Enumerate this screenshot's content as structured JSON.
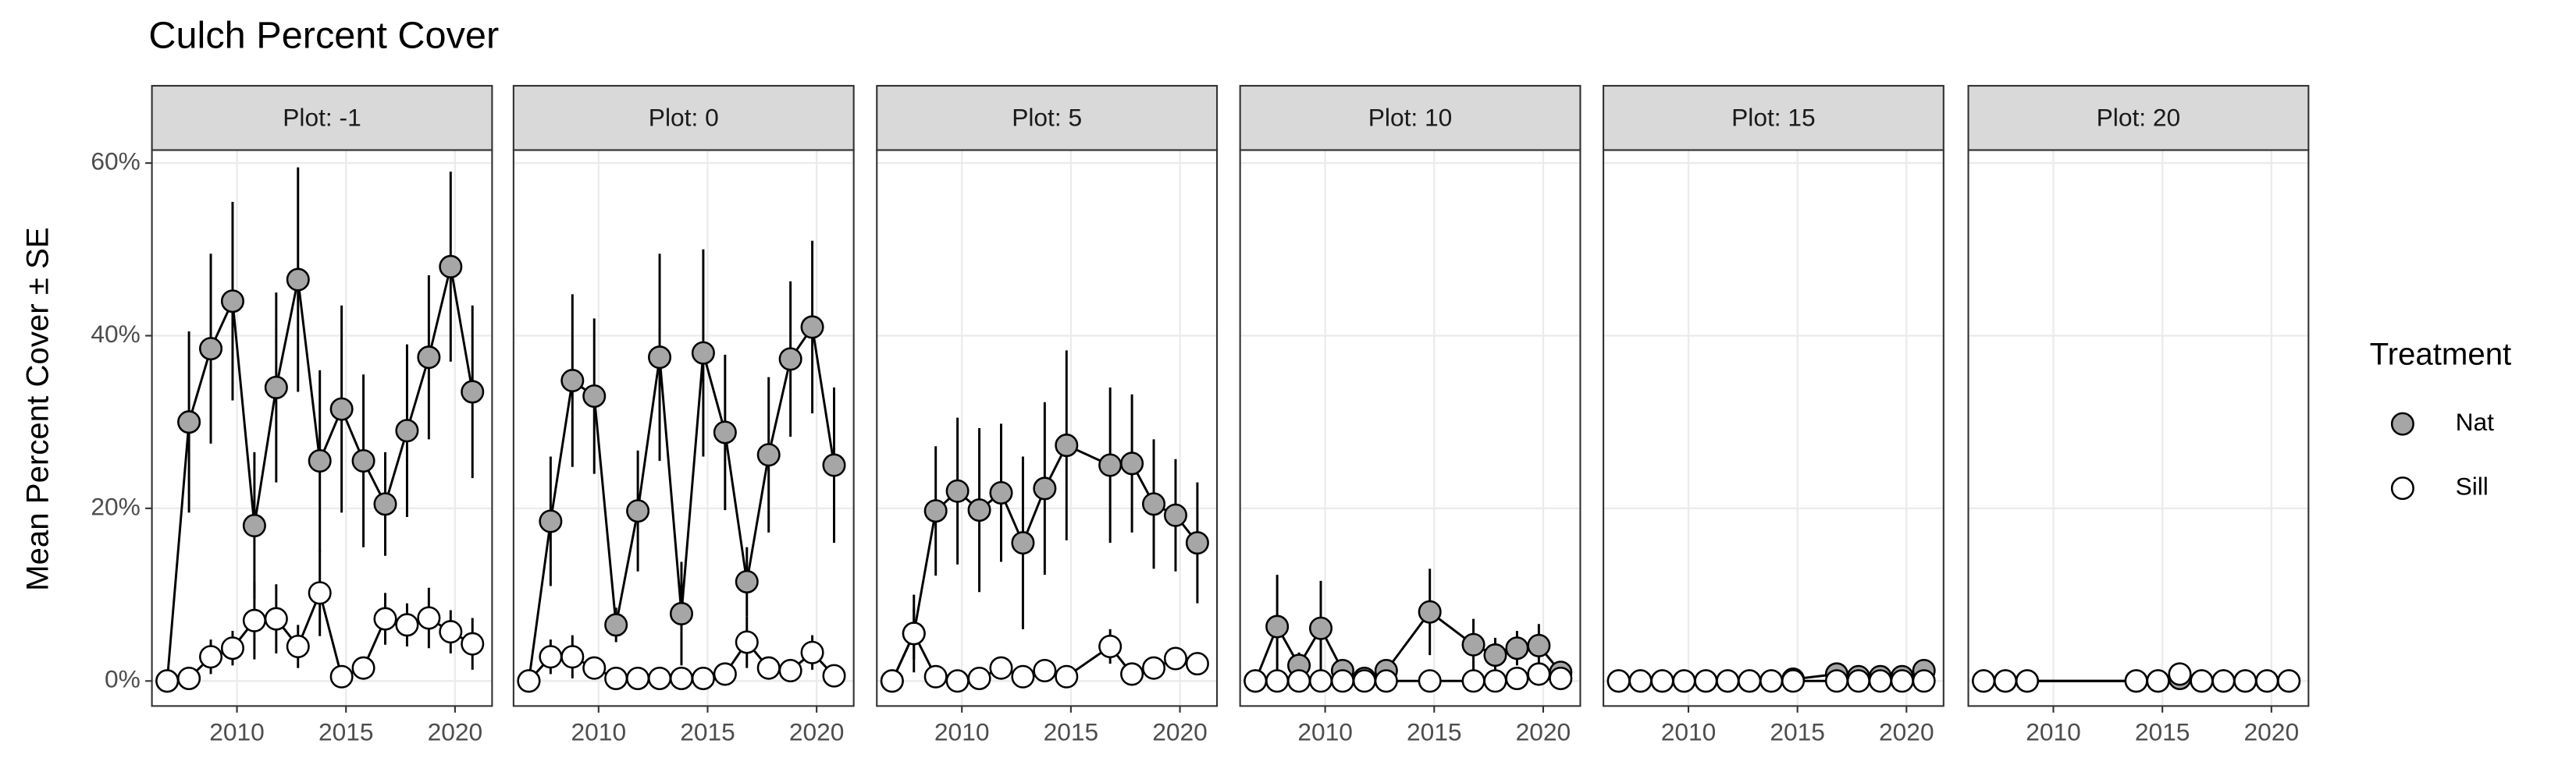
{
  "chart_data": [
    {
      "type": "line",
      "title": "Culch Percent Cover",
      "y_label": "Mean Percent Cover ± SE",
      "legend_title": "Treatment",
      "facet": "Plot: -1",
      "x": [
        2006.8,
        2007.8,
        2008.8,
        2009.8,
        2010.8,
        2011.8,
        2012.8,
        2013.8,
        2014.8,
        2015.8,
        2016.8,
        2017.8,
        2018.8,
        2019.8,
        2020.8
      ],
      "series": [
        {
          "name": "Nat",
          "color": "#a6a6a6",
          "values": [
            0,
            30,
            38.5,
            44,
            18,
            34,
            46.5,
            25.5,
            31.5,
            25.5,
            20.5,
            29,
            37.5,
            48,
            33.5
          ],
          "errors": [
            0,
            10.5,
            11,
            11.5,
            8.5,
            11,
            13,
            10.5,
            12,
            10,
            6,
            10,
            9.5,
            11,
            10
          ]
        },
        {
          "name": "Sill",
          "color": "#ffffff",
          "values": [
            0,
            0.3,
            2.8,
            3.8,
            7,
            7.2,
            4,
            10.2,
            0.5,
            1.5,
            7.2,
            6.5,
            7.3,
            5.7,
            4.3
          ],
          "errors": [
            0,
            0.3,
            2,
            2,
            4.5,
            4,
            2.5,
            5,
            0.5,
            1,
            3,
            2.5,
            3.5,
            2.5,
            3
          ]
        }
      ],
      "xlim": [
        2006.1,
        2021.7
      ],
      "xticks": [
        2010,
        2015,
        2020
      ],
      "ylim": [
        -2.9,
        61.5
      ],
      "yticks": [
        {
          "value": 0,
          "label": "0%"
        },
        {
          "value": 20,
          "label": "20%"
        },
        {
          "value": 40,
          "label": "40%"
        },
        {
          "value": 60,
          "label": "60%"
        }
      ],
      "grid": true
    },
    {
      "type": "line",
      "facet": "Plot: 0",
      "x": [
        2006.8,
        2007.8,
        2008.8,
        2009.8,
        2010.8,
        2011.8,
        2012.8,
        2013.8,
        2014.8,
        2015.8,
        2016.8,
        2017.8,
        2018.8,
        2019.8,
        2020.8
      ],
      "series": [
        {
          "name": "Nat",
          "color": "#a6a6a6",
          "values": [
            0,
            18.5,
            34.8,
            33,
            6.5,
            19.7,
            37.5,
            7.8,
            38,
            28.8,
            11.5,
            26.2,
            37.3,
            41,
            25
          ],
          "errors": [
            0,
            7.5,
            10,
            9,
            2,
            7,
            12,
            6,
            12,
            9,
            4,
            9,
            9,
            10,
            9
          ]
        },
        {
          "name": "Sill",
          "color": "#ffffff",
          "values": [
            0,
            2.8,
            2.8,
            1.5,
            0.3,
            0.3,
            0.3,
            0.3,
            0.3,
            0.8,
            4.5,
            1.5,
            1.2,
            3.3,
            0.6
          ],
          "errors": [
            0,
            2,
            2.5,
            1,
            0.3,
            0.3,
            0.3,
            0.3,
            0.3,
            0.8,
            3,
            1,
            1,
            2,
            0.6
          ]
        }
      ],
      "xlim": [
        2006.1,
        2021.7
      ],
      "xticks": [
        2010,
        2015,
        2020
      ],
      "ylim": [
        -2.9,
        61.5
      ],
      "yticks": [
        0,
        20,
        40,
        60
      ],
      "grid": true
    },
    {
      "type": "line",
      "facet": "Plot: 5",
      "x": [
        2006.8,
        2007.8,
        2008.8,
        2009.8,
        2010.8,
        2011.8,
        2012.8,
        2013.8,
        2014.8,
        2016.8,
        2017.8,
        2018.8,
        2019.8,
        2020.8
      ],
      "series": [
        {
          "name": "Nat",
          "color": "#a6a6a6",
          "values": [
            0,
            5.5,
            19.7,
            22,
            19.8,
            21.8,
            16,
            22.3,
            27.3,
            25,
            25.2,
            20.5,
            19.2,
            16
          ],
          "errors": [
            0,
            4.5,
            7.5,
            8.5,
            9.5,
            8,
            10,
            10,
            11,
            9,
            8,
            7.5,
            6.5,
            7
          ]
        },
        {
          "name": "Sill",
          "color": "#ffffff",
          "values": [
            0,
            5.5,
            0.5,
            0,
            0.3,
            1.5,
            0.5,
            1.2,
            0.5,
            4,
            0.8,
            1.5,
            2.6,
            2
          ],
          "errors": [
            0,
            3,
            0.5,
            0,
            0.3,
            1,
            0.5,
            1,
            0.5,
            2,
            0.8,
            1,
            1,
            1
          ]
        }
      ],
      "xlim": [
        2006.1,
        2021.7
      ],
      "xticks": [
        2010,
        2015,
        2020
      ],
      "ylim": [
        -2.9,
        61.5
      ],
      "yticks": [
        0,
        20,
        40,
        60
      ],
      "grid": true
    },
    {
      "type": "line",
      "facet": "Plot: 10",
      "x": [
        2006.8,
        2007.8,
        2008.8,
        2009.8,
        2010.8,
        2011.8,
        2012.8,
        2014.8,
        2016.8,
        2017.8,
        2018.8,
        2019.8,
        2020.8
      ],
      "series": [
        {
          "name": "Nat",
          "color": "#a6a6a6",
          "values": [
            0,
            6.3,
            1.8,
            6.1,
            1.2,
            0.3,
            1.2,
            8,
            4.2,
            3,
            3.8,
            4.1,
            1
          ],
          "errors": [
            0,
            6,
            1.5,
            5.5,
            1,
            0.3,
            1,
            5,
            3,
            2,
            2,
            2.5,
            1
          ]
        },
        {
          "name": "Sill",
          "color": "#ffffff",
          "values": [
            0,
            0,
            0,
            0,
            0,
            0,
            0,
            0,
            0,
            0,
            0.3,
            0.8,
            0.3
          ],
          "errors": [
            0,
            0,
            0,
            0,
            0,
            0,
            0,
            0,
            0,
            0,
            0.3,
            0.5,
            0.3
          ]
        }
      ],
      "xlim": [
        2006.1,
        2021.7
      ],
      "xticks": [
        2010,
        2015,
        2020
      ],
      "ylim": [
        -2.9,
        61.5
      ],
      "yticks": [
        0,
        20,
        40,
        60
      ],
      "grid": true
    },
    {
      "type": "line",
      "facet": "Plot: 15",
      "x": [
        2006.8,
        2007.8,
        2008.8,
        2009.8,
        2010.8,
        2011.8,
        2012.8,
        2013.8,
        2014.8,
        2016.8,
        2017.8,
        2018.8,
        2019.8,
        2020.8
      ],
      "series": [
        {
          "name": "Nat",
          "color": "#a6a6a6",
          "values": [
            0,
            0,
            0,
            0,
            0,
            0,
            0,
            0,
            0.2,
            0.8,
            0.5,
            0.5,
            0.5,
            1.2
          ],
          "errors": [
            0,
            0,
            0,
            0,
            0,
            0,
            0,
            0,
            0.2,
            0.5,
            0.4,
            0.4,
            0.4,
            0.8
          ]
        },
        {
          "name": "Sill",
          "color": "#ffffff",
          "values": [
            0,
            0,
            0,
            0,
            0,
            0,
            0,
            0,
            0,
            0,
            0,
            0,
            0,
            0
          ],
          "errors": [
            0,
            0,
            0,
            0,
            0,
            0,
            0,
            0,
            0,
            0,
            0,
            0,
            0,
            0
          ]
        }
      ],
      "xlim": [
        2006.1,
        2021.7
      ],
      "xticks": [
        2010,
        2015,
        2020
      ],
      "ylim": [
        -2.9,
        61.5
      ],
      "yticks": [
        0,
        20,
        40,
        60
      ],
      "grid": true
    },
    {
      "type": "line",
      "facet": "Plot: 20",
      "x": [
        2006.8,
        2007.8,
        2008.8,
        2013.8,
        2014.8,
        2015.8,
        2016.8,
        2017.8,
        2018.8,
        2019.8,
        2020.8
      ],
      "series": [
        {
          "name": "Nat",
          "color": "#a6a6a6",
          "values": [
            0,
            0,
            0,
            0,
            0,
            0.3,
            0,
            0,
            0,
            0,
            0
          ],
          "errors": [
            0,
            0,
            0,
            0,
            0,
            0.2,
            0,
            0,
            0,
            0,
            0
          ]
        },
        {
          "name": "Sill",
          "color": "#ffffff",
          "values": [
            0,
            0,
            0,
            0,
            0,
            0.8,
            0,
            0,
            0,
            0,
            0
          ],
          "errors": [
            0,
            0,
            0,
            0,
            0,
            0.5,
            0,
            0,
            0,
            0,
            0
          ]
        }
      ],
      "xlim": [
        2006.1,
        2021.7
      ],
      "xticks": [
        2010,
        2015,
        2020
      ],
      "ylim": [
        -2.9,
        61.5
      ],
      "yticks": [
        0,
        20,
        40,
        60
      ],
      "grid": true
    }
  ]
}
